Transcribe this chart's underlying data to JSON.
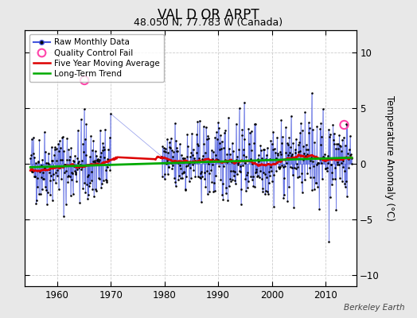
{
  "title": "VAL D OR ARPT",
  "subtitle": "48.050 N, 77.783 W (Canada)",
  "ylabel": "Temperature Anomaly (°C)",
  "watermark": "Berkeley Earth",
  "ylim": [
    -11,
    12
  ],
  "yticks": [
    -10,
    -5,
    0,
    5,
    10
  ],
  "xmin": 1954.0,
  "xmax": 2015.8,
  "xticks": [
    1960,
    1970,
    1980,
    1990,
    2000,
    2010
  ],
  "fig_bg_color": "#e8e8e8",
  "plot_bg": "#ffffff",
  "raw_color": "#4455dd",
  "ma_color": "#dd0000",
  "trend_color": "#00aa00",
  "qc_color": "#ff44aa",
  "seed": 42,
  "start_year": 1955,
  "end_year": 2014,
  "gap_start": 1970.0,
  "gap_end": 1979.5,
  "qc_fail_1_x": 1965.083,
  "qc_fail_1_y": 7.5,
  "qc_fail_2_x": 2013.5,
  "qc_fail_2_y": 3.5
}
